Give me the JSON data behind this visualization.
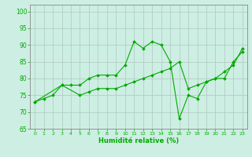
{
  "xlabel": "Humidité relative (%)",
  "xlim": [
    -0.5,
    23.5
  ],
  "ylim": [
    65,
    102
  ],
  "yticks": [
    65,
    70,
    75,
    80,
    85,
    90,
    95,
    100
  ],
  "xticks": [
    0,
    1,
    2,
    3,
    4,
    5,
    6,
    7,
    8,
    9,
    10,
    11,
    12,
    13,
    14,
    15,
    16,
    17,
    18,
    19,
    20,
    21,
    22,
    23
  ],
  "bg_color": "#cdeee3",
  "grid_color": "#b0c8be",
  "line_color": "#00aa00",
  "line1_x": [
    0,
    1,
    2,
    3,
    4,
    5,
    6,
    7,
    8,
    9,
    10,
    11,
    12,
    13,
    14,
    15,
    16,
    17,
    18,
    19,
    20,
    21,
    22,
    23
  ],
  "line1_y": [
    73,
    74,
    75,
    78,
    78,
    78,
    80,
    81,
    81,
    81,
    84,
    91,
    89,
    91,
    90,
    85,
    68,
    75,
    74,
    79,
    80,
    80,
    85,
    88
  ],
  "line2_x": [
    0,
    3,
    5,
    6,
    7,
    8,
    9,
    10,
    11,
    12,
    13,
    14,
    15,
    16,
    17,
    18,
    19,
    20,
    21,
    22,
    23
  ],
  "line2_y": [
    73,
    78,
    75,
    76,
    77,
    77,
    77,
    78,
    79,
    80,
    81,
    82,
    83,
    85,
    77,
    78,
    79,
    80,
    82,
    84,
    89
  ]
}
